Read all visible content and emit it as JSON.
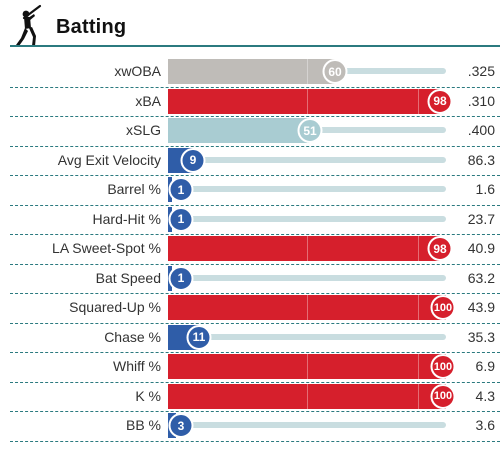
{
  "section": {
    "title": "Batting",
    "icon": "baseball-batter-icon"
  },
  "colors": {
    "high": "#d61f2c",
    "mid": "#bfbcb8",
    "mid_light": "#a9ccd2",
    "low": "#2f5da8",
    "track": "#c9dde0",
    "rule": "#2b7a7f"
  },
  "rows": [
    {
      "label": "xwOBA",
      "percentile": "60",
      "value": ".325",
      "tier": "mid"
    },
    {
      "label": "xBA",
      "percentile": "98",
      "value": ".310",
      "tier": "high"
    },
    {
      "label": "xSLG",
      "percentile": "51",
      "value": ".400",
      "tier": "mid_light"
    },
    {
      "label": "Avg Exit Velocity",
      "percentile": "9",
      "value": "86.3",
      "tier": "low"
    },
    {
      "label": "Barrel %",
      "percentile": "1",
      "value": "1.6",
      "tier": "low"
    },
    {
      "label": "Hard-Hit %",
      "percentile": "1",
      "value": "23.7",
      "tier": "low"
    },
    {
      "label": "LA Sweet-Spot %",
      "percentile": "98",
      "value": "40.9",
      "tier": "high"
    },
    {
      "label": "Bat Speed",
      "percentile": "1",
      "value": "63.2",
      "tier": "low"
    },
    {
      "label": "Squared-Up %",
      "percentile": "100",
      "value": "43.9",
      "tier": "high"
    },
    {
      "label": "Chase %",
      "percentile": "11",
      "value": "35.3",
      "tier": "low"
    },
    {
      "label": "Whiff %",
      "percentile": "100",
      "value": "6.9",
      "tier": "high"
    },
    {
      "label": "K %",
      "percentile": "100",
      "value": "4.3",
      "tier": "high"
    },
    {
      "label": "BB %",
      "percentile": "3",
      "value": "3.6",
      "tier": "low"
    }
  ]
}
